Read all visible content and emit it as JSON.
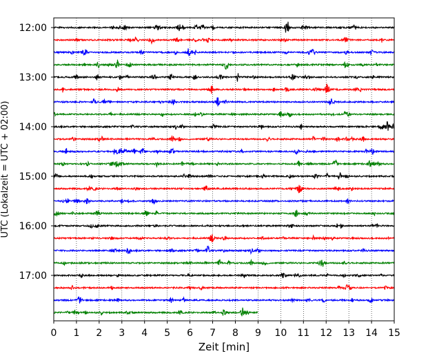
{
  "chart_data": {
    "type": "line",
    "title": "",
    "xlabel": "Zeit  [min]",
    "ylabel": "UTC (Lokalzeit = UTC + 02:00)",
    "xlim": [
      0,
      15
    ],
    "x_ticks": [
      0,
      1,
      2,
      3,
      4,
      5,
      6,
      7,
      8,
      9,
      10,
      11,
      12,
      13,
      14,
      15
    ],
    "y_tick_labels": [
      "12:00",
      "13:00",
      "14:00",
      "15:00",
      "16:00",
      "17:00"
    ],
    "trace_interval_min": 15,
    "start_time": "12:00",
    "trace_count": 24,
    "last_trace_end_min": 9,
    "trace_colors": [
      "#000000",
      "#ff0000",
      "#0000ff",
      "#008000"
    ],
    "grid": "vertical dotted",
    "events": [
      {
        "trace": 0,
        "minute": 10.3,
        "strength": "large"
      },
      {
        "trace": 5,
        "minute": 12.05,
        "strength": "medium"
      },
      {
        "trace": 4,
        "minute": 4.4,
        "strength": "small"
      },
      {
        "trace": 13,
        "minute": 10.8,
        "strength": "small"
      },
      {
        "trace": 13,
        "minute": 12.5,
        "strength": "small"
      },
      {
        "trace": 12,
        "minute": 12.6,
        "strength": "small"
      },
      {
        "trace": 18,
        "minute": 3.3,
        "strength": "small"
      },
      {
        "trace": 10,
        "minute": 3.9,
        "strength": "small"
      },
      {
        "trace": 11,
        "minute": 12.4,
        "strength": "small"
      }
    ]
  }
}
